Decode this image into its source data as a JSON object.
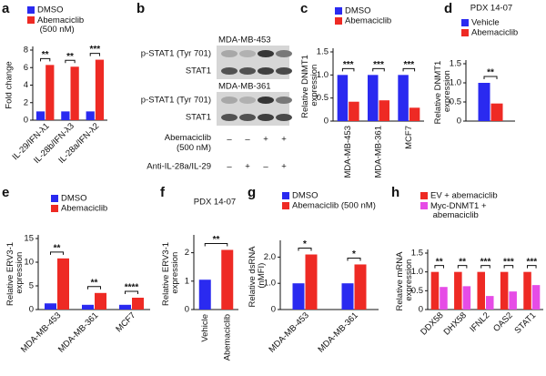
{
  "chart_data": [
    {
      "type": "bar",
      "panel": "a",
      "ylabel": "Fold change",
      "categories": [
        "IL-29/IFN-λ1",
        "IL-28b/IFN-λ3",
        "IL-28a/IFN-λ2"
      ],
      "series": [
        {
          "name": "DMSO",
          "color": "#2a2af0",
          "values": [
            1,
            1,
            1
          ]
        },
        {
          "name": "Abemaciclib (500 nM)",
          "color": "#ee2a24",
          "values": [
            6.3,
            6.1,
            6.9
          ]
        }
      ],
      "annotations": [
        "**",
        "**",
        "***"
      ],
      "ylim": [
        0,
        8
      ],
      "yticks": [
        0,
        2,
        4,
        6,
        8
      ]
    },
    {
      "type": "bar",
      "panel": "c",
      "ylabel": "Relative DNMT1 expression",
      "categories": [
        "MDA-MB-453",
        "MDA-MB-361",
        "MCF7"
      ],
      "series": [
        {
          "name": "DMSO",
          "color": "#2a2af0",
          "values": [
            1,
            1,
            1
          ]
        },
        {
          "name": "Abemaciclib",
          "color": "#ee2a24",
          "values": [
            0.42,
            0.45,
            0.29
          ]
        }
      ],
      "annotations": [
        "***",
        "***",
        "***"
      ],
      "ylim": [
        0,
        1.5
      ],
      "yticks": [
        0,
        0.5,
        {
          "value": 1,
          "label": "1.0"
        },
        1.5
      ]
    },
    {
      "type": "bar",
      "panel": "d",
      "title": "PDX 14-07",
      "ylabel": "Relative DNMT1 expression",
      "categories": [
        null
      ],
      "series": [
        {
          "name": "Vehicle",
          "color": "#2a2af0",
          "values": [
            1.0
          ]
        },
        {
          "name": "Abemaciclib",
          "color": "#ee2a24",
          "values": [
            0.46
          ]
        }
      ],
      "annotations": [
        "**"
      ],
      "ylim": [
        0,
        1.5
      ],
      "yticks": [
        0,
        0.5,
        {
          "value": 1,
          "label": "1.0"
        },
        1.5
      ]
    },
    {
      "type": "bar",
      "panel": "e",
      "ylabel": "Relative ERV3-1 expression",
      "categories": [
        "MDA-MB-453",
        "MDA-MB-361",
        "MCF7"
      ],
      "series": [
        {
          "name": "DMSO",
          "color": "#2a2af0",
          "values": [
            1.3,
            1.0,
            1.0
          ]
        },
        {
          "name": "Abemaciclib",
          "color": "#ee2a24",
          "values": [
            10.8,
            3.5,
            2.5
          ]
        }
      ],
      "annotations": [
        "**",
        "**",
        "****"
      ],
      "ylim": [
        0,
        15
      ],
      "yticks": [
        0,
        5,
        10,
        15
      ]
    },
    {
      "type": "bar",
      "panel": "f",
      "title": "PDX 14-07",
      "ylabel": "Relative ERV3-1 expression",
      "categories": [
        "Vehicle",
        "Abemaciclib"
      ],
      "values": [
        1.05,
        2.1
      ],
      "colors": [
        "#2a2af0",
        "#ee2a24"
      ],
      "annotations": [
        "**"
      ],
      "ylim": [
        0,
        2.5
      ],
      "yticks": [
        0,
        1,
        2
      ]
    },
    {
      "type": "bar",
      "panel": "g",
      "ylabel": "Relative dsRNA (nMFI)",
      "categories": [
        "MDA-MB-453",
        "MDA-MB-361"
      ],
      "series": [
        {
          "name": "DMSO",
          "color": "#2a2af0",
          "values": [
            1,
            1
          ]
        },
        {
          "name": "Abemaciclib (500 nM)",
          "color": "#ee2a24",
          "values": [
            2.1,
            1.72
          ]
        }
      ],
      "annotations": [
        "*",
        "*"
      ],
      "ylim": [
        0,
        2.5
      ],
      "yticks": [
        0,
        {
          "value": 1,
          "label": "1.0"
        },
        {
          "value": 2,
          "label": "2.0"
        }
      ]
    },
    {
      "type": "bar",
      "panel": "h",
      "ylabel": "Relative mRNA expression",
      "categories": [
        "DDX58",
        "DHX58",
        "IFNL2",
        "OAS2",
        "STAT1"
      ],
      "series": [
        {
          "name": "EV + abemaciclib",
          "color": "#ee2a24",
          "values": [
            1,
            1,
            1,
            1,
            1
          ]
        },
        {
          "name": "Myc-DNMT1 + abemaciclib",
          "color": "#e64ce6",
          "values": [
            0.6,
            0.62,
            0.36,
            0.48,
            0.65
          ]
        }
      ],
      "annotations": [
        "**",
        "**",
        "***",
        "***",
        "***"
      ],
      "ylim": [
        0,
        1.5
      ],
      "yticks": [
        0,
        0.5,
        {
          "value": 1,
          "label": "1.0"
        },
        1.5
      ]
    }
  ],
  "blot": {
    "panel": "b",
    "cell_lines": [
      {
        "name": "MDA-MB-453",
        "rows": [
          "p-STAT1 (Tyr 701)",
          "STAT1"
        ]
      },
      {
        "name": "MDA-MB-361",
        "rows": [
          "p-STAT1 (Tyr 701)",
          "STAT1"
        ]
      }
    ],
    "conditions": [
      {
        "label": "Abemaciclib (500 nM)",
        "signs": [
          "–",
          "–",
          "+",
          "+"
        ]
      },
      {
        "label": "Anti-IL-28a/IL-29",
        "signs": [
          "–",
          "+",
          "–",
          "+"
        ]
      }
    ]
  }
}
